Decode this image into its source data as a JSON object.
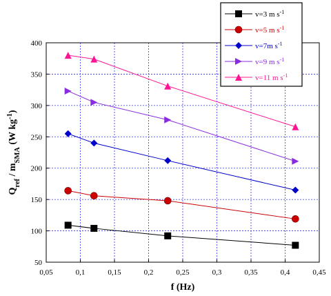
{
  "chart_data": {
    "type": "line",
    "xlabel": "f (Hz)",
    "ylabel": "Q_ref / m_SMA   (W kg^-1)",
    "xlim": [
      0.05,
      0.45
    ],
    "ylim": [
      50,
      400
    ],
    "xticks": [
      "0,05",
      "0,1",
      "0,15",
      "0,2",
      "0,25",
      "0,3",
      "0,35",
      "0,4",
      "0,45"
    ],
    "yticks": [
      "50",
      "100",
      "150",
      "200",
      "250",
      "300",
      "350",
      "400"
    ],
    "grid": true,
    "legend_position": "top-right",
    "x": [
      0.082,
      0.12,
      0.228,
      0.415
    ],
    "series": [
      {
        "name": "v=3 m s^-1",
        "color": "#000000",
        "marker": "square",
        "values": [
          109,
          104,
          92,
          77
        ]
      },
      {
        "name": "v=5 m s^-1",
        "color": "#cc0000",
        "marker": "circle",
        "values": [
          164,
          156,
          148,
          119
        ]
      },
      {
        "name": "v=7m s^-1",
        "color": "#0000cc",
        "marker": "diamond",
        "values": [
          255,
          240,
          212,
          165
        ]
      },
      {
        "name": "v=9 m s^-1",
        "color": "#8a2be2",
        "marker": "triangle-right",
        "values": [
          323,
          305,
          277,
          211
        ]
      },
      {
        "name": "v=11 m s^-1",
        "color": "#ff1493",
        "marker": "triangle-up",
        "values": [
          380,
          374,
          331,
          266
        ]
      }
    ]
  }
}
